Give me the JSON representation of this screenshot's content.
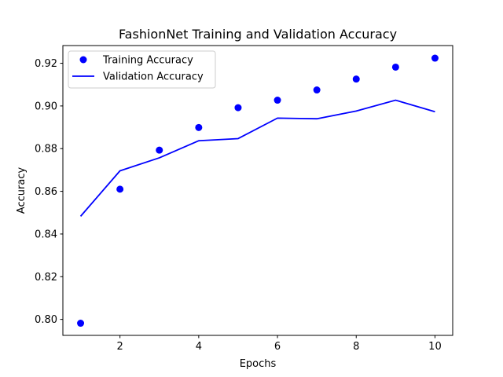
{
  "chart_data": {
    "type": "line",
    "title": "FashionNet Training and Validation Accuracy",
    "xlabel": "Epochs",
    "ylabel": "Accuracy",
    "xlim": [
      0.55,
      10.45
    ],
    "ylim": [
      0.7925,
      0.9283
    ],
    "xticks": [
      2,
      4,
      6,
      8,
      10
    ],
    "xtick_labels": [
      "2",
      "4",
      "6",
      "8",
      "10"
    ],
    "yticks": [
      0.8,
      0.82,
      0.84,
      0.86,
      0.88,
      0.9,
      0.92
    ],
    "ytick_labels": [
      "0.80",
      "0.82",
      "0.84",
      "0.86",
      "0.88",
      "0.90",
      "0.92"
    ],
    "grid": false,
    "legend_position": "top-left",
    "x": [
      1,
      2,
      3,
      4,
      5,
      6,
      7,
      8,
      9,
      10
    ],
    "series": [
      {
        "name": "Training Accuracy",
        "style": "markers",
        "color": "#0000ff",
        "values": [
          0.7982,
          0.861,
          0.8793,
          0.8899,
          0.8992,
          0.9027,
          0.9075,
          0.9126,
          0.9182,
          0.9224
        ]
      },
      {
        "name": "Validation Accuracy",
        "style": "line",
        "color": "#0000ff",
        "values": [
          0.8483,
          0.8696,
          0.8757,
          0.8837,
          0.8847,
          0.8943,
          0.894,
          0.8976,
          0.9027,
          0.8973
        ]
      }
    ]
  }
}
